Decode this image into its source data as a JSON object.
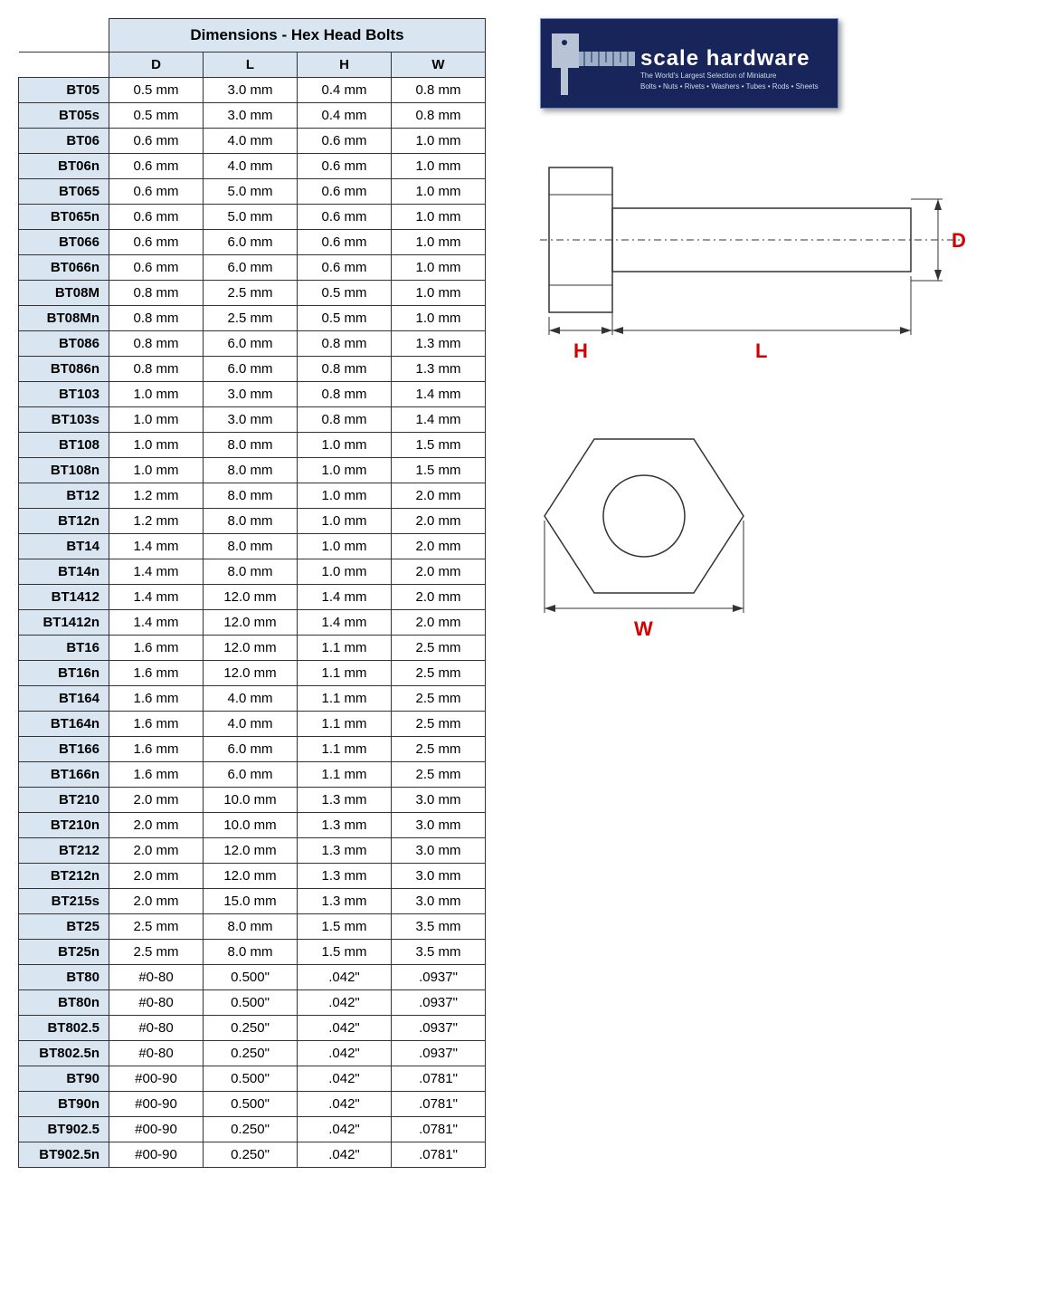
{
  "table": {
    "title": "Dimensions - Hex Head Bolts",
    "columns": [
      "D",
      "L",
      "H",
      "W"
    ],
    "rows": [
      {
        "id": "BT05",
        "D": "0.5 mm",
        "L": "3.0 mm",
        "H": "0.4 mm",
        "W": "0.8 mm"
      },
      {
        "id": "BT05s",
        "D": "0.5 mm",
        "L": "3.0 mm",
        "H": "0.4 mm",
        "W": "0.8 mm"
      },
      {
        "id": "BT06",
        "D": "0.6 mm",
        "L": "4.0 mm",
        "H": "0.6 mm",
        "W": "1.0 mm"
      },
      {
        "id": "BT06n",
        "D": "0.6 mm",
        "L": "4.0 mm",
        "H": "0.6 mm",
        "W": "1.0 mm"
      },
      {
        "id": "BT065",
        "D": "0.6 mm",
        "L": "5.0 mm",
        "H": "0.6 mm",
        "W": "1.0 mm"
      },
      {
        "id": "BT065n",
        "D": "0.6 mm",
        "L": "5.0 mm",
        "H": "0.6 mm",
        "W": "1.0 mm"
      },
      {
        "id": "BT066",
        "D": "0.6 mm",
        "L": "6.0 mm",
        "H": "0.6 mm",
        "W": "1.0 mm"
      },
      {
        "id": "BT066n",
        "D": "0.6 mm",
        "L": "6.0 mm",
        "H": "0.6 mm",
        "W": "1.0 mm"
      },
      {
        "id": "BT08M",
        "D": "0.8 mm",
        "L": "2.5 mm",
        "H": "0.5 mm",
        "W": "1.0 mm"
      },
      {
        "id": "BT08Mn",
        "D": "0.8 mm",
        "L": "2.5 mm",
        "H": "0.5 mm",
        "W": "1.0 mm"
      },
      {
        "id": "BT086",
        "D": "0.8 mm",
        "L": "6.0 mm",
        "H": "0.8 mm",
        "W": "1.3 mm"
      },
      {
        "id": "BT086n",
        "D": "0.8 mm",
        "L": "6.0 mm",
        "H": "0.8 mm",
        "W": "1.3 mm"
      },
      {
        "id": "BT103",
        "D": "1.0 mm",
        "L": "3.0 mm",
        "H": "0.8 mm",
        "W": "1.4 mm"
      },
      {
        "id": "BT103s",
        "D": "1.0 mm",
        "L": "3.0 mm",
        "H": "0.8 mm",
        "W": "1.4 mm"
      },
      {
        "id": "BT108",
        "D": "1.0 mm",
        "L": "8.0 mm",
        "H": "1.0 mm",
        "W": "1.5 mm"
      },
      {
        "id": "BT108n",
        "D": "1.0 mm",
        "L": "8.0 mm",
        "H": "1.0 mm",
        "W": "1.5 mm"
      },
      {
        "id": "BT12",
        "D": "1.2 mm",
        "L": "8.0 mm",
        "H": "1.0 mm",
        "W": "2.0 mm"
      },
      {
        "id": "BT12n",
        "D": "1.2 mm",
        "L": "8.0 mm",
        "H": "1.0 mm",
        "W": "2.0 mm"
      },
      {
        "id": "BT14",
        "D": "1.4 mm",
        "L": "8.0 mm",
        "H": "1.0 mm",
        "W": "2.0 mm"
      },
      {
        "id": "BT14n",
        "D": "1.4 mm",
        "L": "8.0 mm",
        "H": "1.0 mm",
        "W": "2.0 mm"
      },
      {
        "id": "BT1412",
        "D": "1.4 mm",
        "L": "12.0 mm",
        "H": "1.4 mm",
        "W": "2.0 mm"
      },
      {
        "id": "BT1412n",
        "D": "1.4 mm",
        "L": "12.0 mm",
        "H": "1.4 mm",
        "W": "2.0 mm"
      },
      {
        "id": "BT16",
        "D": "1.6 mm",
        "L": "12.0 mm",
        "H": "1.1 mm",
        "W": "2.5 mm"
      },
      {
        "id": "BT16n",
        "D": "1.6 mm",
        "L": "12.0 mm",
        "H": "1.1 mm",
        "W": "2.5 mm"
      },
      {
        "id": "BT164",
        "D": "1.6 mm",
        "L": "4.0 mm",
        "H": "1.1 mm",
        "W": "2.5 mm"
      },
      {
        "id": "BT164n",
        "D": "1.6 mm",
        "L": "4.0 mm",
        "H": "1.1 mm",
        "W": "2.5 mm"
      },
      {
        "id": "BT166",
        "D": "1.6 mm",
        "L": "6.0 mm",
        "H": "1.1 mm",
        "W": "2.5 mm"
      },
      {
        "id": "BT166n",
        "D": "1.6 mm",
        "L": "6.0 mm",
        "H": "1.1 mm",
        "W": "2.5 mm"
      },
      {
        "id": "BT210",
        "D": "2.0 mm",
        "L": "10.0 mm",
        "H": "1.3 mm",
        "W": "3.0 mm"
      },
      {
        "id": "BT210n",
        "D": "2.0 mm",
        "L": "10.0 mm",
        "H": "1.3 mm",
        "W": "3.0 mm"
      },
      {
        "id": "BT212",
        "D": "2.0 mm",
        "L": "12.0 mm",
        "H": "1.3 mm",
        "W": "3.0 mm"
      },
      {
        "id": "BT212n",
        "D": "2.0 mm",
        "L": "12.0 mm",
        "H": "1.3 mm",
        "W": "3.0 mm"
      },
      {
        "id": "BT215s",
        "D": "2.0 mm",
        "L": "15.0 mm",
        "H": "1.3 mm",
        "W": "3.0 mm"
      },
      {
        "id": "BT25",
        "D": "2.5 mm",
        "L": "8.0 mm",
        "H": "1.5 mm",
        "W": "3.5 mm"
      },
      {
        "id": "BT25n",
        "D": "2.5 mm",
        "L": "8.0 mm",
        "H": "1.5 mm",
        "W": "3.5 mm"
      },
      {
        "id": "BT80",
        "D": "#0-80",
        "L": "0.500\"",
        "H": ".042\"",
        "W": ".0937\""
      },
      {
        "id": "BT80n",
        "D": "#0-80",
        "L": "0.500\"",
        "H": ".042\"",
        "W": ".0937\""
      },
      {
        "id": "BT802.5",
        "D": "#0-80",
        "L": "0.250\"",
        "H": ".042\"",
        "W": ".0937\""
      },
      {
        "id": "BT802.5n",
        "D": "#0-80",
        "L": "0.250\"",
        "H": ".042\"",
        "W": ".0937\""
      },
      {
        "id": "BT90",
        "D": "#00-90",
        "L": "0.500\"",
        "H": ".042\"",
        "W": ".0781\""
      },
      {
        "id": "BT90n",
        "D": "#00-90",
        "L": "0.500\"",
        "H": ".042\"",
        "W": ".0781\""
      },
      {
        "id": "BT902.5",
        "D": "#00-90",
        "L": "0.250\"",
        "H": ".042\"",
        "W": ".0781\""
      },
      {
        "id": "BT902.5n",
        "D": "#00-90",
        "L": "0.250\"",
        "H": ".042\"",
        "W": ".0781\""
      }
    ],
    "header_bg": "#d9e6f2",
    "border_color": "#333333"
  },
  "logo": {
    "brand": "scale hardware",
    "tagline1": "The World's Largest Selection of Miniature",
    "tagline2": "Bolts • Nuts • Rivets • Washers • Tubes • Rods • Sheets",
    "bg_color": "#17255a",
    "text_color": "#ffffff"
  },
  "diagram": {
    "labels": {
      "D": "D",
      "L": "L",
      "H": "H",
      "W": "W"
    },
    "label_color": "#d40000",
    "line_color": "#333333"
  }
}
